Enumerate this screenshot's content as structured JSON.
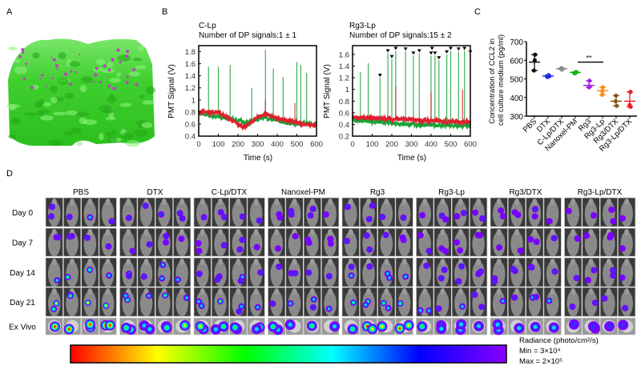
{
  "panels": {
    "a": "A",
    "b": "B",
    "c": "C",
    "d": "D"
  },
  "chart_data": [
    {
      "type": "line",
      "title": "C-Lp",
      "subtitle": "Number of DP signals:1 ± 1",
      "xlabel": "Time (s)",
      "ylabel": "PMT Signal (V)",
      "xlim": [
        0,
        600
      ],
      "ylim": [
        0.4,
        1.9
      ],
      "xticks": [
        "0",
        "100",
        "200",
        "300",
        "400",
        "500",
        "600"
      ],
      "yticks": [
        "0.4",
        "0.6",
        "0.8",
        "1",
        "1.2",
        "1.4",
        "1.6",
        "1.8"
      ],
      "series_colors": {
        "green": "#1aa33a",
        "red": "#e0202e"
      },
      "red_baseline": [
        [
          0,
          0.8
        ],
        [
          100,
          0.8
        ],
        [
          200,
          0.6
        ],
        [
          230,
          0.55
        ],
        [
          330,
          0.77
        ],
        [
          400,
          0.7
        ],
        [
          500,
          0.62
        ],
        [
          600,
          0.57
        ]
      ],
      "green_baseline": [
        [
          0,
          0.78
        ],
        [
          100,
          0.72
        ],
        [
          200,
          0.66
        ],
        [
          250,
          0.62
        ],
        [
          330,
          0.72
        ],
        [
          450,
          0.62
        ],
        [
          600,
          0.6
        ]
      ],
      "green_spikes": [
        [
          50,
          1.55
        ],
        [
          100,
          1.55
        ],
        [
          160,
          1.58
        ],
        [
          270,
          1.2
        ],
        [
          340,
          1.83
        ],
        [
          380,
          1.52
        ],
        [
          430,
          1.38
        ],
        [
          500,
          1.63
        ],
        [
          520,
          1.58
        ],
        [
          550,
          1.45
        ]
      ],
      "red_spikes": [
        [
          340,
          1.0
        ],
        [
          490,
          0.95
        ]
      ],
      "dp_marks": []
    },
    {
      "type": "line",
      "title": "Rg3-Lp",
      "subtitle": "Number of DP signals:15 ± 2",
      "xlabel": "Time (s)",
      "ylabel": "PMT Signal (V)",
      "xlim": [
        0,
        600
      ],
      "ylim": [
        0.2,
        1.75
      ],
      "xticks": [
        "0",
        "100",
        "200",
        "300",
        "400",
        "500",
        "600"
      ],
      "yticks": [
        "0.2",
        "0.4",
        "0.6",
        "0.8",
        "1",
        "1.2",
        "1.4",
        "1.6"
      ],
      "series_colors": {
        "green": "#1aa33a",
        "red": "#e0202e"
      },
      "red_baseline": [
        [
          0,
          0.52
        ],
        [
          300,
          0.48
        ],
        [
          600,
          0.44
        ]
      ],
      "green_baseline": [
        [
          0,
          0.48
        ],
        [
          300,
          0.4
        ],
        [
          600,
          0.37
        ]
      ],
      "green_spikes": [
        [
          40,
          1.3
        ],
        [
          80,
          1.45
        ],
        [
          140,
          1.2
        ],
        [
          180,
          1.62
        ],
        [
          200,
          1.52
        ],
        [
          220,
          1.66
        ],
        [
          270,
          1.65
        ],
        [
          310,
          1.58
        ],
        [
          340,
          1.62
        ],
        [
          400,
          1.58
        ],
        [
          420,
          1.58
        ],
        [
          440,
          1.5
        ],
        [
          480,
          1.6
        ],
        [
          500,
          1.66
        ],
        [
          540,
          1.65
        ],
        [
          570,
          1.66
        ],
        [
          600,
          1.6
        ]
      ],
      "red_spikes": [
        [
          220,
          1.05
        ],
        [
          400,
          0.95
        ],
        [
          560,
          1.0
        ]
      ],
      "dp_marks": [
        [
          140,
          1.2
        ],
        [
          180,
          1.62
        ],
        [
          200,
          1.52
        ],
        [
          220,
          1.66
        ],
        [
          270,
          1.65
        ],
        [
          310,
          1.58
        ],
        [
          340,
          1.62
        ],
        [
          400,
          1.58
        ],
        [
          405,
          1.66
        ],
        [
          420,
          1.58
        ],
        [
          440,
          1.5
        ],
        [
          480,
          1.6
        ],
        [
          500,
          1.66
        ],
        [
          540,
          1.65
        ],
        [
          570,
          1.66
        ],
        [
          600,
          1.6
        ]
      ]
    },
    {
      "type": "scatter",
      "ylabel": "Concentration of CCL2 in cell culture medium (pg/ml)",
      "ylim": [
        300,
        700
      ],
      "yticks": [
        "300",
        "400",
        "500",
        "600",
        "700"
      ],
      "categories": [
        "PBS",
        "DTX",
        "C-Lp/DTX",
        "Nanoxel-PM",
        "Rg3",
        "Rg3-Lp",
        "Rg3/DTX",
        "Rg3-Lp/DTX"
      ],
      "colors": [
        "#111111",
        "#1f2fe0",
        "#8c8c8c",
        "#19b219",
        "#a020e0",
        "#ff8a1a",
        "#8b5a1a",
        "#ee1c24"
      ],
      "means": [
        590,
        515,
        555,
        535,
        465,
        437,
        380,
        380
      ],
      "points": [
        [
          630,
          600,
          545
        ],
        [
          520,
          512,
          510
        ],
        [
          558,
          552,
          550
        ],
        [
          538,
          532,
          530
        ],
        [
          490,
          460,
          455
        ],
        [
          455,
          435,
          415
        ],
        [
          410,
          380,
          355
        ],
        [
          430,
          350,
          360
        ]
      ],
      "significance": {
        "from": "Nanoxel-PM",
        "to": "Rg3-Lp",
        "label": "**",
        "y": 590
      }
    }
  ],
  "imaging": {
    "groups": [
      "PBS",
      "DTX",
      "C-Lp/DTX",
      "Nanoxel-PM",
      "Rg3",
      "Rg3-Lp",
      "Rg3/DTX",
      "Rg3-Lp/DTX"
    ],
    "rows": [
      "Day 0",
      "Day 7",
      "Day 14",
      "Day 21",
      "Ex Vivo"
    ],
    "colorbar": {
      "title": "Radiance (photo/cm²/s)",
      "min": "Min = 3×10⁴",
      "max": "Max = 2×10⁵",
      "colors": [
        "#ff0000",
        "#ffff00",
        "#00ff00",
        "#00ffff",
        "#0000ff",
        "#8a00ff"
      ]
    }
  }
}
